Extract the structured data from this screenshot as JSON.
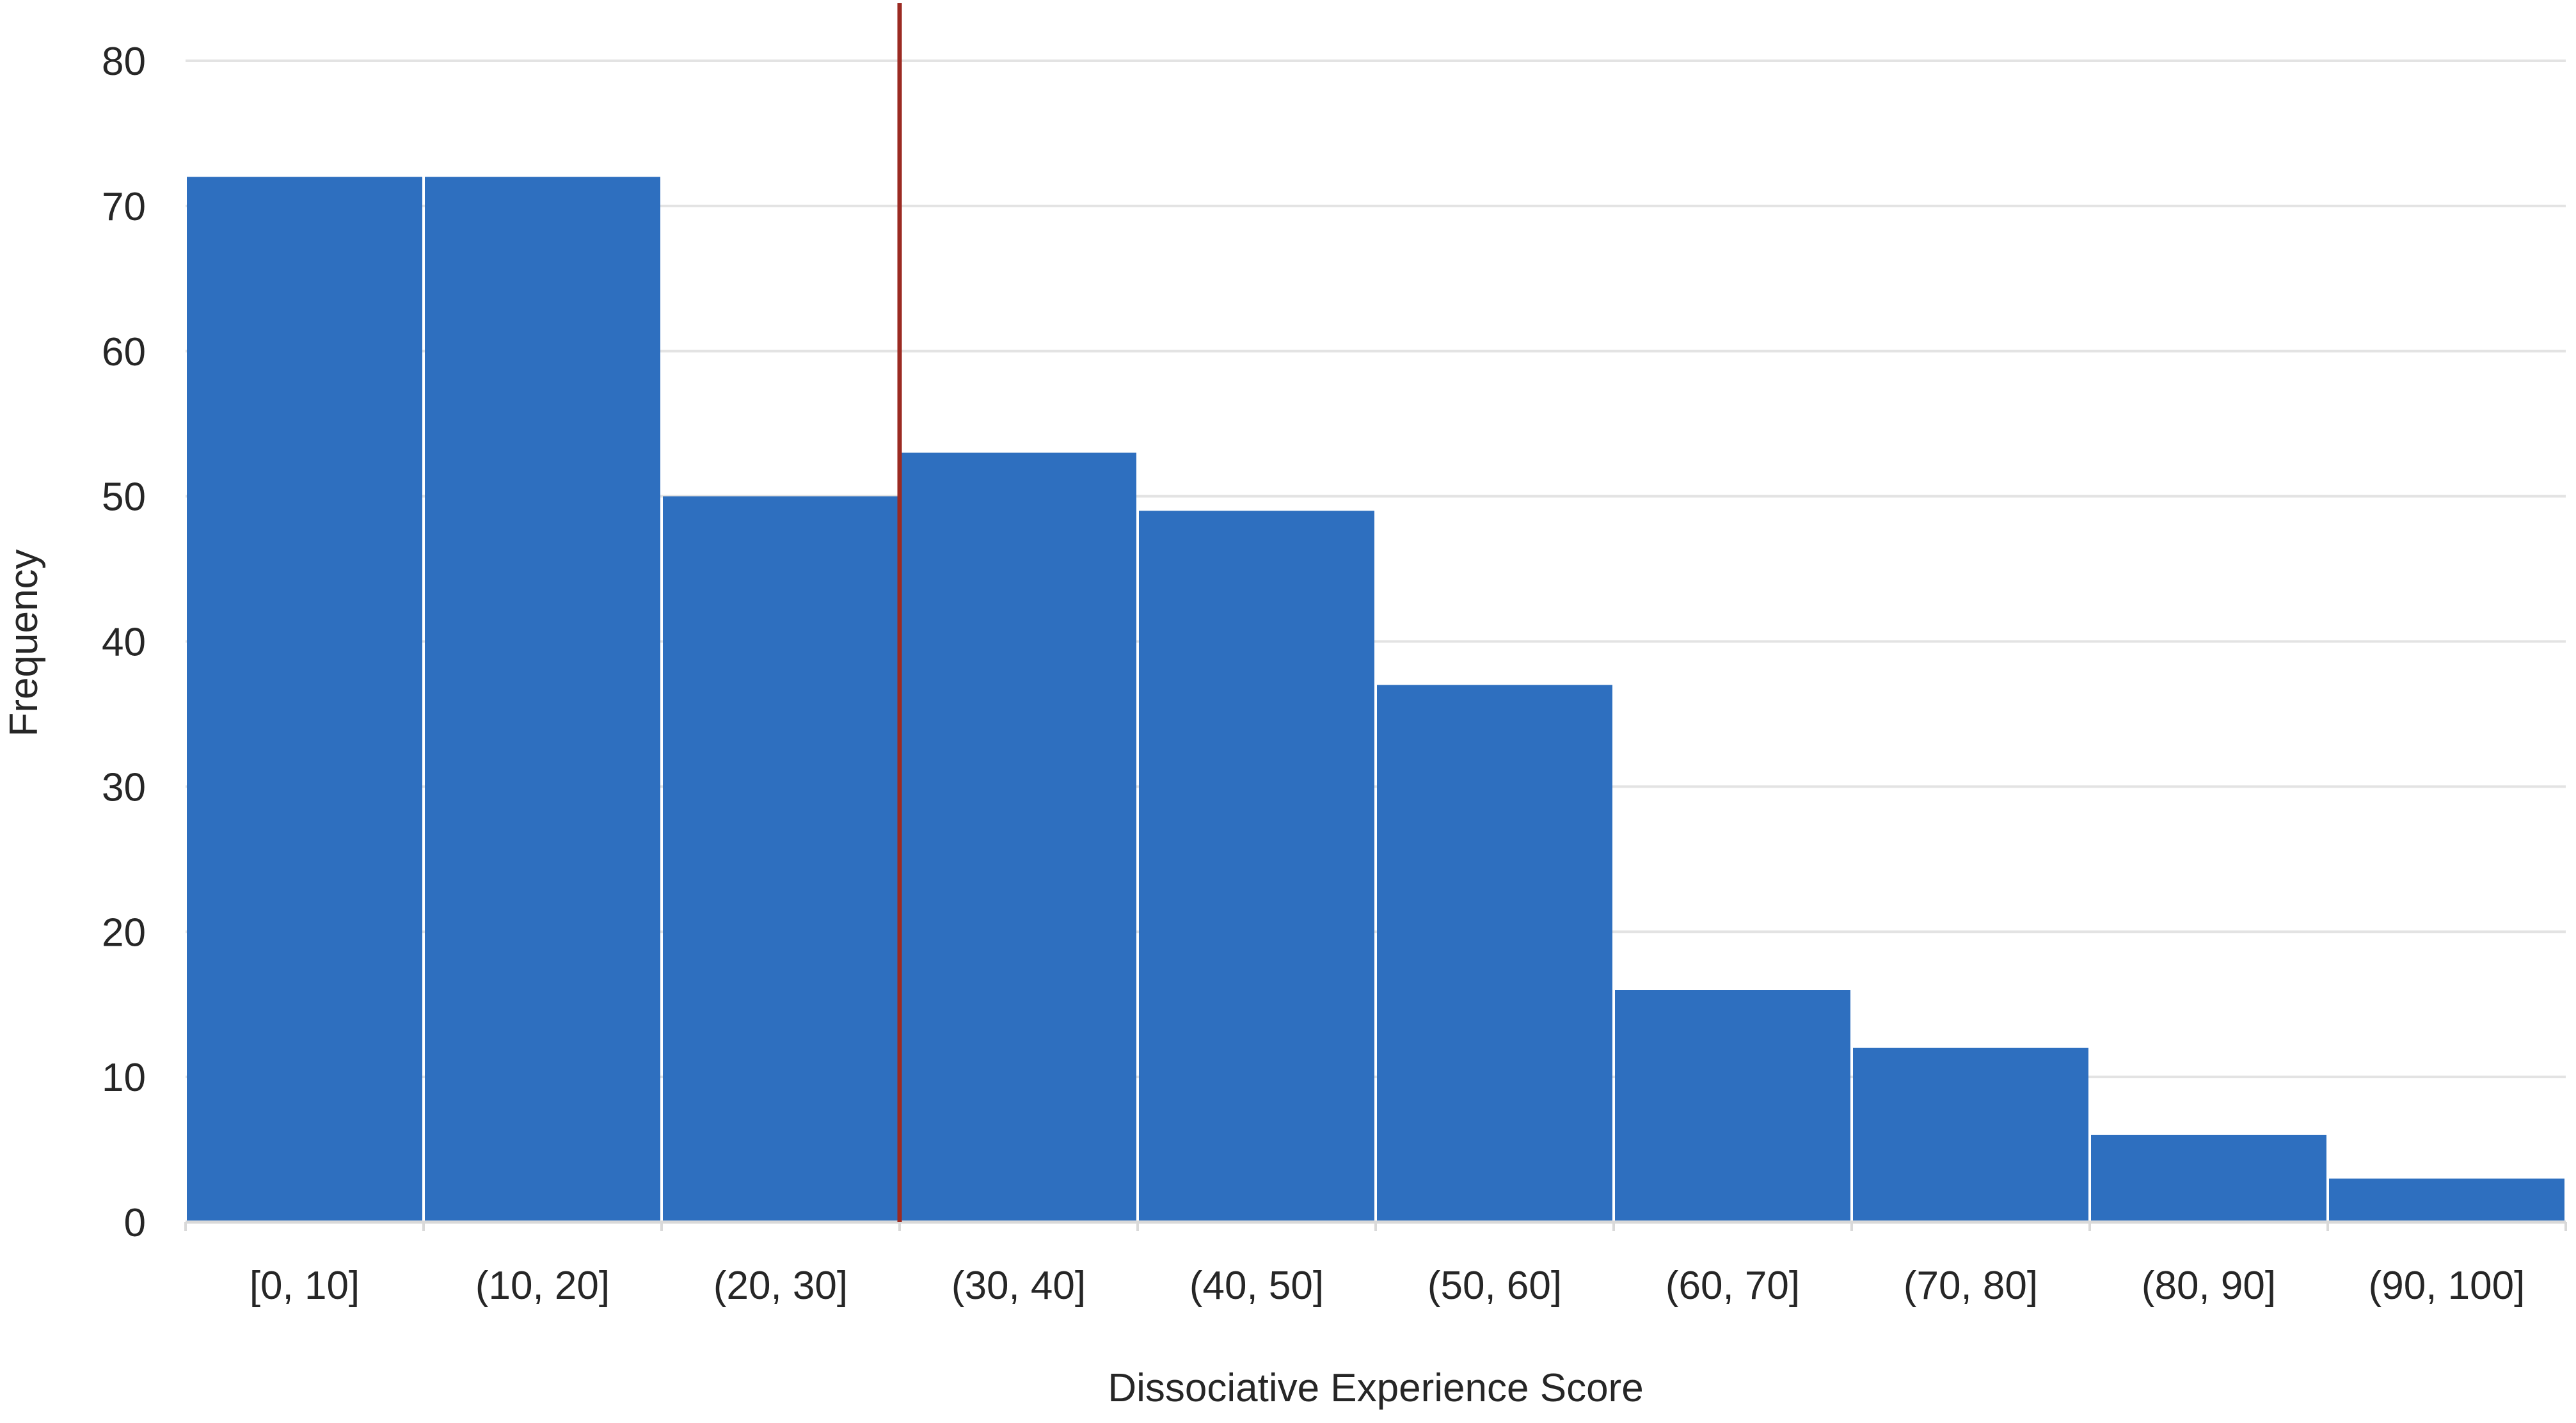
{
  "chart_data": {
    "type": "bar",
    "title": "",
    "xlabel": "Dissociative Experience Score",
    "ylabel": "Frequency",
    "categories": [
      "[0, 10]",
      "(10, 20]",
      "(20, 30]",
      "(30, 40]",
      "(40, 50]",
      "(50, 60]",
      "(60, 70]",
      "(70, 80]",
      "(80, 90]",
      "(90, 100]"
    ],
    "values": [
      72,
      72,
      50,
      53,
      49,
      37,
      16,
      12,
      6,
      3
    ],
    "ylim": [
      0,
      80
    ],
    "yticks": [
      "0",
      "10",
      "20",
      "30",
      "40",
      "50",
      "60",
      "70",
      "80"
    ],
    "grid": true,
    "legend": "none",
    "reference_line": {
      "x": 30,
      "orientation": "vertical",
      "color": "#9b2a22"
    },
    "bar_color": "#2e6fbf",
    "grid_color": "#e3e3e3",
    "axis_color": "#d9d9d9"
  }
}
